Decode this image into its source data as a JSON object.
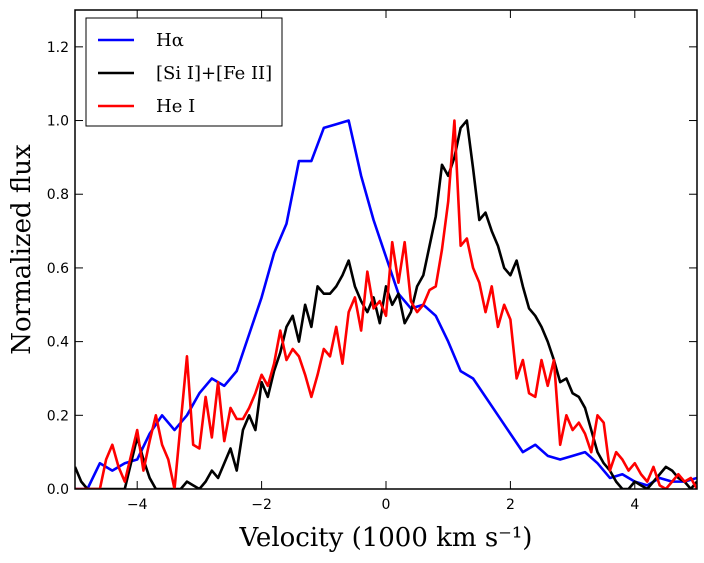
{
  "chart_data": {
    "type": "line",
    "title": "",
    "xlabel": "Velocity (1000 km s⁻¹)",
    "ylabel": "Normalized flux",
    "xlim": [
      -5,
      5
    ],
    "ylim": [
      0,
      1.3
    ],
    "xticks": [
      -4,
      -2,
      0,
      2,
      4
    ],
    "xtick_labels": [
      "−4",
      "−2",
      "0",
      "2",
      "4"
    ],
    "yticks": [
      0.0,
      0.2,
      0.4,
      0.6,
      0.8,
      1.0,
      1.2
    ],
    "ytick_labels": [
      "0.0",
      "0.2",
      "0.4",
      "0.6",
      "0.8",
      "1.0",
      "1.2"
    ],
    "grid": false,
    "legend_position": "top-left",
    "series": [
      {
        "name": "Hα",
        "color": "#0000ff",
        "x": [
          -5.0,
          -4.8,
          -4.6,
          -4.4,
          -4.2,
          -4.0,
          -3.8,
          -3.6,
          -3.4,
          -3.2,
          -3.0,
          -2.8,
          -2.6,
          -2.4,
          -2.2,
          -2.0,
          -1.8,
          -1.6,
          -1.4,
          -1.2,
          -1.0,
          -0.8,
          -0.6,
          -0.4,
          -0.2,
          0.0,
          0.2,
          0.4,
          0.6,
          0.8,
          1.0,
          1.2,
          1.4,
          1.6,
          1.8,
          2.0,
          2.2,
          2.4,
          2.6,
          2.8,
          3.0,
          3.2,
          3.4,
          3.6,
          3.8,
          4.0,
          4.2,
          4.4,
          4.6,
          4.8,
          5.0
        ],
        "values": [
          0.0,
          0.0,
          0.07,
          0.05,
          0.07,
          0.08,
          0.15,
          0.2,
          0.16,
          0.2,
          0.26,
          0.3,
          0.28,
          0.32,
          0.42,
          0.52,
          0.64,
          0.72,
          0.89,
          0.89,
          0.98,
          0.99,
          1.0,
          0.85,
          0.73,
          0.63,
          0.53,
          0.49,
          0.5,
          0.47,
          0.4,
          0.32,
          0.3,
          0.25,
          0.2,
          0.15,
          0.1,
          0.12,
          0.09,
          0.08,
          0.09,
          0.1,
          0.07,
          0.03,
          0.04,
          0.02,
          0.01,
          0.03,
          0.02,
          0.02,
          0.03
        ]
      },
      {
        "name": "[Si I]+[Fe II]",
        "color": "#000000",
        "x": [
          -5.0,
          -4.9,
          -4.8,
          -4.7,
          -4.6,
          -4.5,
          -4.4,
          -4.3,
          -4.2,
          -4.1,
          -4.0,
          -3.9,
          -3.8,
          -3.7,
          -3.6,
          -3.5,
          -3.4,
          -3.3,
          -3.2,
          -3.1,
          -3.0,
          -2.9,
          -2.8,
          -2.7,
          -2.6,
          -2.5,
          -2.4,
          -2.3,
          -2.2,
          -2.1,
          -2.0,
          -1.9,
          -1.8,
          -1.7,
          -1.6,
          -1.5,
          -1.4,
          -1.3,
          -1.2,
          -1.1,
          -1.0,
          -0.9,
          -0.8,
          -0.7,
          -0.6,
          -0.5,
          -0.4,
          -0.3,
          -0.2,
          -0.1,
          0.0,
          0.1,
          0.2,
          0.3,
          0.4,
          0.5,
          0.6,
          0.7,
          0.8,
          0.9,
          1.0,
          1.1,
          1.2,
          1.3,
          1.4,
          1.5,
          1.6,
          1.7,
          1.8,
          1.9,
          2.0,
          2.1,
          2.2,
          2.3,
          2.4,
          2.5,
          2.6,
          2.7,
          2.8,
          2.9,
          3.0,
          3.1,
          3.2,
          3.3,
          3.4,
          3.5,
          3.6,
          3.7,
          3.8,
          3.9,
          4.0,
          4.1,
          4.2,
          4.3,
          4.4,
          4.5,
          4.6,
          4.7,
          4.8,
          4.9,
          5.0
        ],
        "values": [
          0.06,
          0.02,
          0.0,
          0.0,
          0.0,
          0.0,
          0.0,
          0.0,
          0.0,
          0.07,
          0.14,
          0.08,
          0.03,
          0.0,
          0.0,
          0.0,
          0.0,
          0.0,
          0.02,
          0.01,
          0.0,
          0.02,
          0.05,
          0.03,
          0.07,
          0.11,
          0.05,
          0.16,
          0.2,
          0.16,
          0.29,
          0.25,
          0.32,
          0.37,
          0.44,
          0.47,
          0.4,
          0.5,
          0.44,
          0.55,
          0.53,
          0.53,
          0.55,
          0.58,
          0.62,
          0.55,
          0.51,
          0.48,
          0.52,
          0.45,
          0.55,
          0.5,
          0.53,
          0.45,
          0.48,
          0.55,
          0.58,
          0.66,
          0.74,
          0.88,
          0.85,
          0.9,
          0.98,
          1.0,
          0.87,
          0.73,
          0.75,
          0.7,
          0.66,
          0.6,
          0.58,
          0.62,
          0.55,
          0.49,
          0.47,
          0.44,
          0.4,
          0.35,
          0.29,
          0.3,
          0.26,
          0.25,
          0.22,
          0.16,
          0.1,
          0.07,
          0.05,
          0.02,
          0.0,
          0.0,
          0.02,
          0.01,
          0.0,
          0.02,
          0.04,
          0.06,
          0.05,
          0.03,
          0.02,
          0.0,
          0.02
        ]
      },
      {
        "name": "He I",
        "color": "#ff0000",
        "x": [
          -5.0,
          -4.9,
          -4.8,
          -4.7,
          -4.6,
          -4.5,
          -4.4,
          -4.3,
          -4.2,
          -4.1,
          -4.0,
          -3.9,
          -3.8,
          -3.7,
          -3.6,
          -3.5,
          -3.4,
          -3.3,
          -3.2,
          -3.1,
          -3.0,
          -2.9,
          -2.8,
          -2.7,
          -2.6,
          -2.5,
          -2.4,
          -2.3,
          -2.2,
          -2.1,
          -2.0,
          -1.9,
          -1.8,
          -1.7,
          -1.6,
          -1.5,
          -1.4,
          -1.3,
          -1.2,
          -1.1,
          -1.0,
          -0.9,
          -0.8,
          -0.7,
          -0.6,
          -0.5,
          -0.4,
          -0.3,
          -0.2,
          -0.1,
          0.0,
          0.1,
          0.2,
          0.3,
          0.4,
          0.5,
          0.6,
          0.7,
          0.8,
          0.9,
          1.0,
          1.1,
          1.2,
          1.3,
          1.4,
          1.5,
          1.6,
          1.7,
          1.8,
          1.9,
          2.0,
          2.1,
          2.2,
          2.3,
          2.4,
          2.5,
          2.6,
          2.7,
          2.8,
          2.9,
          3.0,
          3.1,
          3.2,
          3.3,
          3.4,
          3.5,
          3.6,
          3.7,
          3.8,
          3.9,
          4.0,
          4.1,
          4.2,
          4.3,
          4.4,
          4.5,
          4.6,
          4.7,
          4.8,
          4.9,
          5.0
        ],
        "values": [
          0.0,
          0.0,
          0.0,
          0.0,
          0.0,
          0.08,
          0.12,
          0.06,
          0.02,
          0.09,
          0.16,
          0.05,
          0.13,
          0.2,
          0.12,
          0.08,
          0.0,
          0.18,
          0.36,
          0.12,
          0.11,
          0.25,
          0.14,
          0.29,
          0.13,
          0.22,
          0.19,
          0.19,
          0.22,
          0.26,
          0.31,
          0.28,
          0.34,
          0.43,
          0.35,
          0.38,
          0.36,
          0.31,
          0.25,
          0.31,
          0.38,
          0.36,
          0.44,
          0.34,
          0.48,
          0.52,
          0.43,
          0.59,
          0.49,
          0.51,
          0.47,
          0.67,
          0.56,
          0.67,
          0.51,
          0.48,
          0.5,
          0.54,
          0.55,
          0.65,
          0.78,
          1.0,
          0.66,
          0.68,
          0.6,
          0.56,
          0.48,
          0.55,
          0.44,
          0.5,
          0.46,
          0.3,
          0.35,
          0.26,
          0.25,
          0.35,
          0.28,
          0.35,
          0.12,
          0.2,
          0.16,
          0.18,
          0.15,
          0.1,
          0.2,
          0.18,
          0.05,
          0.1,
          0.08,
          0.05,
          0.07,
          0.04,
          0.02,
          0.06,
          0.01,
          0.0,
          0.02,
          0.04,
          0.02,
          0.03,
          0.0
        ]
      }
    ]
  }
}
